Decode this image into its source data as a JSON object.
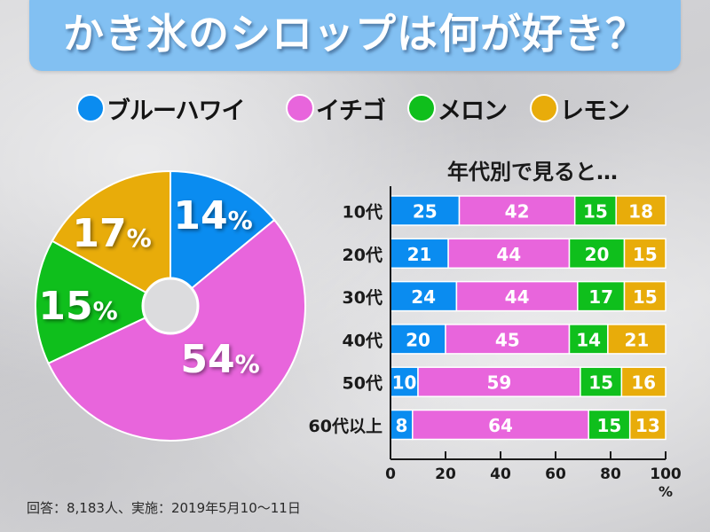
{
  "title": "かき氷のシロップは何が好き？",
  "legend": [
    {
      "label": "ブルーハワイ",
      "color": "#0a8cf0"
    },
    {
      "label": "イチゴ",
      "color": "#e865dc"
    },
    {
      "label": "メロン",
      "color": "#0fbf1c"
    },
    {
      "label": "レモン",
      "color": "#e8ac0a"
    }
  ],
  "footnote": "回答：8,183人、実施：2019年5月10～11日",
  "chart_data": [
    {
      "type": "pie",
      "title": "かき氷のシロップは何が好き？",
      "donut_hole": true,
      "slices": [
        {
          "name": "ブルーハワイ",
          "value": 14,
          "label": "14",
          "color": "#0a8cf0"
        },
        {
          "name": "イチゴ",
          "value": 54,
          "label": "54",
          "color": "#e865dc"
        },
        {
          "name": "メロン",
          "value": 15,
          "label": "15",
          "color": "#0fbf1c"
        },
        {
          "name": "レモン",
          "value": 17,
          "label": "17",
          "color": "#e8ac0a"
        }
      ],
      "unit": "%",
      "start": "top, clockwise"
    },
    {
      "type": "bar",
      "orientation": "horizontal",
      "stacked": true,
      "title": "年代別で見ると…",
      "categories": [
        "10代",
        "20代",
        "30代",
        "40代",
        "50代",
        "60代以上"
      ],
      "series": [
        {
          "name": "ブルーハワイ",
          "color": "#0a8cf0",
          "values": [
            25,
            21,
            24,
            20,
            10,
            8
          ]
        },
        {
          "name": "イチゴ",
          "color": "#e865dc",
          "values": [
            42,
            44,
            44,
            45,
            59,
            64
          ]
        },
        {
          "name": "メロン",
          "color": "#0fbf1c",
          "values": [
            15,
            20,
            17,
            14,
            15,
            15
          ]
        },
        {
          "name": "レモン",
          "color": "#e8ac0a",
          "values": [
            18,
            15,
            15,
            21,
            16,
            13
          ]
        }
      ],
      "xlim": [
        0,
        100
      ],
      "xticks": [
        "0",
        "20",
        "40",
        "60",
        "80",
        "100"
      ],
      "xlabel": "%",
      "grid": false
    }
  ]
}
